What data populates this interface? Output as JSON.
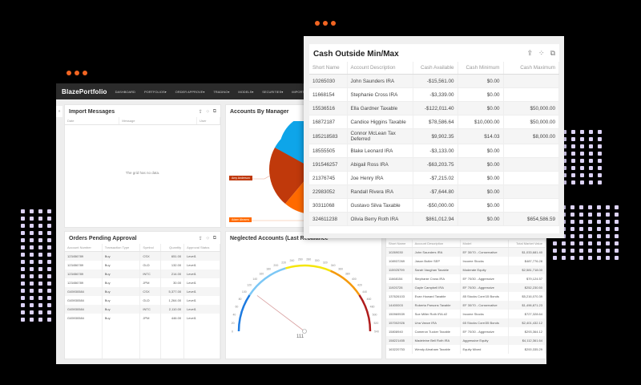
{
  "app": {
    "brand": "BlazePortfolio",
    "nav": [
      "DASHBOARD",
      "PORTFOLIOS▾",
      "ORDER APPROVE▾",
      "TRADING▾",
      "MODELS▾",
      "SECURITIES▾",
      "IMPORT▾",
      "ADMIN▾"
    ],
    "sidebar_toggle": "»"
  },
  "icons": {
    "export": "⇪",
    "expand": "⁘",
    "popout": "⧉"
  },
  "import_messages": {
    "title": "Import Messages",
    "columns": [
      "Date",
      "Message",
      "User"
    ],
    "empty_text": "The grid has no data."
  },
  "accounts_by_manager": {
    "title": "Accounts By Manager",
    "labels": [
      "Amy Anderson",
      "Adam Abrams"
    ]
  },
  "chart_data": {
    "type": "pie",
    "title": "Accounts By Manager",
    "slices": [
      {
        "name": "Blue segment",
        "color": "#0ea5e9"
      },
      {
        "name": "Amy Anderson",
        "color": "#c0390b"
      },
      {
        "name": "Adam Abrams",
        "color": "#ff6a00"
      }
    ]
  },
  "orders_pending": {
    "title": "Orders Pending Approval",
    "columns": [
      "Account Number",
      "Transaction Type",
      "Symbol",
      "Quantity",
      "Approval Status"
    ],
    "rows": [
      [
        "123456789",
        "Buy",
        "CSX",
        "651.00",
        "Level1"
      ],
      [
        "123456789",
        "Buy",
        "GLD",
        "132.00",
        "Level1"
      ],
      [
        "123456789",
        "Buy",
        "INTC",
        "214.00",
        "Level1"
      ],
      [
        "123456789",
        "Buy",
        "JPM",
        "30.00",
        "Level1"
      ],
      [
        "G45930584",
        "Buy",
        "CSX",
        "5,377.00",
        "Level1"
      ],
      [
        "G45930584",
        "Buy",
        "GLD",
        "1,264.00",
        "Level1"
      ],
      [
        "G45930584",
        "Buy",
        "INTC",
        "2,110.00",
        "Level1"
      ],
      [
        "G45930584",
        "Buy",
        "JPM",
        "446.00",
        "Level1"
      ]
    ]
  },
  "neglected": {
    "title": "Neglected Accounts (Last Rebalance",
    "value": "111",
    "ticks": [
      "0",
      "20",
      "40",
      "60",
      "80",
      "100",
      "120",
      "140",
      "160",
      "180",
      "200",
      "220",
      "240",
      "260",
      "280",
      "300",
      "320",
      "340",
      "360",
      "380",
      "400",
      "420",
      "440",
      "460",
      "480",
      "500",
      "520",
      "540"
    ]
  },
  "cash_outside": {
    "title": "Cash Outside Min/Max",
    "columns": [
      "Short Name",
      "Account Description",
      "Cash Available",
      "Cash Minimum",
      "Cash Maximum"
    ],
    "rows": [
      [
        "10265030",
        "John Saunders IRA",
        "-$15,561.00",
        "$0.00",
        ""
      ],
      [
        "11668154",
        "Stephanie Cross IRA",
        "-$3,339.00",
        "$0.00",
        ""
      ],
      [
        "15536516",
        "Ella Gardner Taxable",
        "-$122,011.40",
        "$0.00",
        "$50,000.00"
      ],
      [
        "16872187",
        "Candice Higgins Taxable",
        "$78,586.64",
        "$10,000.00",
        "$50,000.00"
      ],
      [
        "185218583",
        "Connor McLean Tax Deferred",
        "$9,902.35",
        "$14.03",
        "$8,000.00"
      ],
      [
        "18555505",
        "Blake Leonard IRA",
        "-$3,133.00",
        "$0.00",
        ""
      ],
      [
        "191546257",
        "Abigail Ross IRA",
        "-$63,203.75",
        "$0.00",
        ""
      ],
      [
        "21376745",
        "Joe Henry IRA",
        "-$7,215.02",
        "$0.00",
        ""
      ],
      [
        "22983052",
        "Randall Rivera IRA",
        "-$7,644.80",
        "$0.00",
        ""
      ],
      [
        "30311068",
        "Gustavo Silva Taxable",
        "-$50,000.00",
        "$0.00",
        ""
      ],
      [
        "324611238",
        "Olivia Berry Roth IRA",
        "$861,012.94",
        "$0.00",
        "$654,586.59"
      ]
    ]
  },
  "market_value": {
    "columns": [
      "Short Name",
      "Account Description",
      "Model",
      "Total Market Value"
    ],
    "rows": [
      [
        "10269030",
        "John Saunders IRA",
        "EF 30/70 - Conservative",
        "$1,033,681.40"
      ],
      [
        "108937269",
        "Jason Butler SEP",
        "Income Stocks",
        "$487,776.28"
      ],
      [
        "115925799",
        "Sarah Vaughan Taxable",
        "Moderate Equity",
        "$2,581,718.00"
      ],
      [
        "11668154",
        "Stephanie Cross IRA",
        "EF 70/30 - Aggressive",
        "$79,124.57"
      ],
      [
        "11920728",
        "Gayle Campbell IRA",
        "EF 70/30 - Aggressive",
        "$252,230.50"
      ],
      [
        "137626103",
        "Evan Howard Taxable",
        "85 Stocks Core/15 Bonds",
        "$5,216,070.39"
      ],
      [
        "14400003",
        "Roberta Parsons Taxable",
        "EF 30/70 - Conservative",
        "$1,496,871.23"
      ],
      [
        "150969539",
        "Sue Miller Roth IRA #2",
        "Income Stocks",
        "$727,328.64"
      ],
      [
        "157002926",
        "Una Vance IRA",
        "65 Stocks Core/35 Bonds",
        "$2,401,432.12"
      ],
      [
        "15808940",
        "Cameron Tucker Taxable",
        "EF 70/30 - Aggressive",
        "$293,364.12"
      ],
      [
        "158221455",
        "Madeleine Bell Roth IRA",
        "Aggressive Equity",
        "$4,112,361.64"
      ],
      [
        "163220753",
        "Wendy Abraham Taxable",
        "Equity Mixed",
        "$200,335.29"
      ]
    ]
  }
}
